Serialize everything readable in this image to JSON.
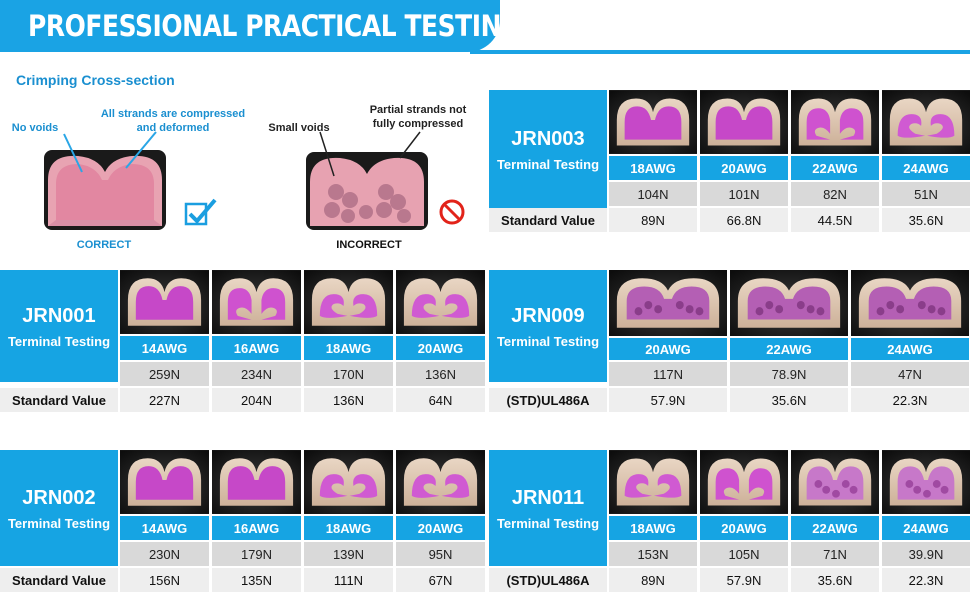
{
  "header": {
    "title": "PROFESSIONAL PRACTICAL TESTING"
  },
  "crimping": {
    "title": "Crimping Cross-section",
    "correct": {
      "note_left": "No voids",
      "note_right": "All strands are compressed and deformed",
      "verdict": "CORRECT"
    },
    "incorrect": {
      "note_left": "Small voids",
      "note_right": "Partial strands not fully compressed",
      "verdict": "INCORRECT"
    }
  },
  "colors": {
    "accent": "#16a4e3",
    "force_bg": "#d9d9d9",
    "std_bg": "#eeeeee"
  },
  "tables": {
    "jrn003": {
      "model": "JRN003",
      "subtitle": "Terminal Testing",
      "awg": [
        "18AWG",
        "20AWG",
        "22AWG",
        "24AWG"
      ],
      "force": [
        "104N",
        "101N",
        "82N",
        "51N"
      ],
      "std_label": "Standard Value",
      "std": [
        "89N",
        "66.8N",
        "44.5N",
        "35.6N"
      ]
    },
    "jrn001": {
      "model": "JRN001",
      "subtitle": "Terminal Testing",
      "awg": [
        "14AWG",
        "16AWG",
        "18AWG",
        "20AWG"
      ],
      "force": [
        "259N",
        "234N",
        "170N",
        "136N"
      ],
      "std_label": "Standard Value",
      "std": [
        "227N",
        "204N",
        "136N",
        "64N"
      ]
    },
    "jrn009": {
      "model": "JRN009",
      "subtitle": "Terminal Testing",
      "awg": [
        "20AWG",
        "22AWG",
        "24AWG"
      ],
      "force": [
        "117N",
        "78.9N",
        "47N"
      ],
      "std_label": "(STD)UL486A",
      "std": [
        "57.9N",
        "35.6N",
        "22.3N"
      ]
    },
    "jrn002": {
      "model": "JRN002",
      "subtitle": "Terminal Testing",
      "awg": [
        "14AWG",
        "16AWG",
        "18AWG",
        "20AWG"
      ],
      "force": [
        "230N",
        "179N",
        "139N",
        "95N"
      ],
      "std_label": "Standard Value",
      "std": [
        "156N",
        "135N",
        "111N",
        "67N"
      ]
    },
    "jrn011": {
      "model": "JRN011",
      "subtitle": "Terminal Testing",
      "awg": [
        "18AWG",
        "20AWG",
        "22AWG",
        "24AWG"
      ],
      "force": [
        "153N",
        "105N",
        "71N",
        "39.9N"
      ],
      "std_label": "(STD)UL486A",
      "std": [
        "89N",
        "57.9N",
        "35.6N",
        "22.3N"
      ]
    }
  }
}
